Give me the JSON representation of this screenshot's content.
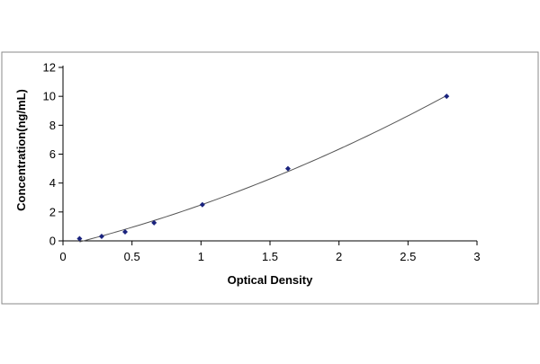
{
  "chart_data": {
    "type": "scatter",
    "title": "",
    "xlabel": "Optical Density",
    "ylabel": "Concentration(ng/mL)",
    "xlim": [
      0,
      3
    ],
    "ylim": [
      0,
      12
    ],
    "xticks": [
      0,
      0.5,
      1,
      1.5,
      2,
      2.5,
      3
    ],
    "xtick_labels": [
      "0",
      "0.5",
      "1",
      "1.5",
      "2",
      "2.5",
      "3"
    ],
    "yticks": [
      0,
      2,
      4,
      6,
      8,
      10,
      12
    ],
    "ytick_labels": [
      "0",
      "2",
      "4",
      "6",
      "8",
      "10",
      "12"
    ],
    "grid": false,
    "legend": "none",
    "trendline": true,
    "series": [
      {
        "marker": "diamond",
        "color": "#1a237e",
        "points": [
          {
            "x": 0.12,
            "y": 0.156
          },
          {
            "x": 0.28,
            "y": 0.312
          },
          {
            "x": 0.45,
            "y": 0.625
          },
          {
            "x": 0.66,
            "y": 1.25
          },
          {
            "x": 1.01,
            "y": 2.5
          },
          {
            "x": 1.63,
            "y": 5
          },
          {
            "x": 2.78,
            "y": 10
          }
        ]
      }
    ],
    "line_color": "#555555",
    "frame_color": "#888888"
  }
}
